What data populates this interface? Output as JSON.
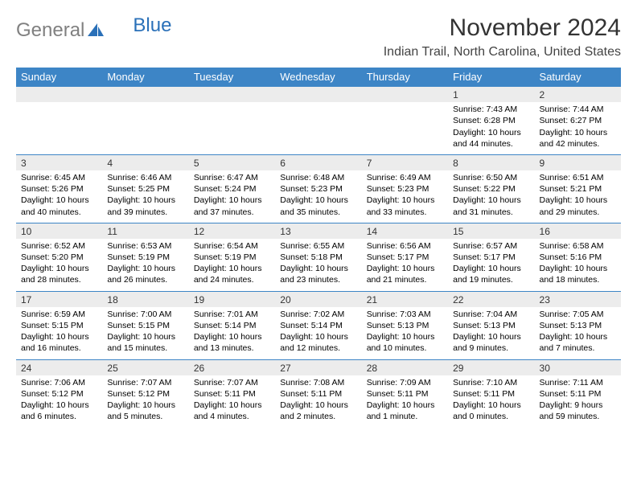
{
  "logo": {
    "text_gray": "General",
    "text_blue": "Blue",
    "gray": "#808080",
    "blue": "#2a70b8"
  },
  "title": "November 2024",
  "location": "Indian Trail, North Carolina, United States",
  "colors": {
    "header_bg": "#3d85c6",
    "header_fg": "#ffffff",
    "daynum_bg": "#ececec",
    "border": "#3d85c6"
  },
  "day_headers": [
    "Sunday",
    "Monday",
    "Tuesday",
    "Wednesday",
    "Thursday",
    "Friday",
    "Saturday"
  ],
  "weeks": [
    [
      null,
      null,
      null,
      null,
      null,
      {
        "n": "1",
        "sr": "Sunrise: 7:43 AM",
        "ss": "Sunset: 6:28 PM",
        "dl": "Daylight: 10 hours and 44 minutes."
      },
      {
        "n": "2",
        "sr": "Sunrise: 7:44 AM",
        "ss": "Sunset: 6:27 PM",
        "dl": "Daylight: 10 hours and 42 minutes."
      }
    ],
    [
      {
        "n": "3",
        "sr": "Sunrise: 6:45 AM",
        "ss": "Sunset: 5:26 PM",
        "dl": "Daylight: 10 hours and 40 minutes."
      },
      {
        "n": "4",
        "sr": "Sunrise: 6:46 AM",
        "ss": "Sunset: 5:25 PM",
        "dl": "Daylight: 10 hours and 39 minutes."
      },
      {
        "n": "5",
        "sr": "Sunrise: 6:47 AM",
        "ss": "Sunset: 5:24 PM",
        "dl": "Daylight: 10 hours and 37 minutes."
      },
      {
        "n": "6",
        "sr": "Sunrise: 6:48 AM",
        "ss": "Sunset: 5:23 PM",
        "dl": "Daylight: 10 hours and 35 minutes."
      },
      {
        "n": "7",
        "sr": "Sunrise: 6:49 AM",
        "ss": "Sunset: 5:23 PM",
        "dl": "Daylight: 10 hours and 33 minutes."
      },
      {
        "n": "8",
        "sr": "Sunrise: 6:50 AM",
        "ss": "Sunset: 5:22 PM",
        "dl": "Daylight: 10 hours and 31 minutes."
      },
      {
        "n": "9",
        "sr": "Sunrise: 6:51 AM",
        "ss": "Sunset: 5:21 PM",
        "dl": "Daylight: 10 hours and 29 minutes."
      }
    ],
    [
      {
        "n": "10",
        "sr": "Sunrise: 6:52 AM",
        "ss": "Sunset: 5:20 PM",
        "dl": "Daylight: 10 hours and 28 minutes."
      },
      {
        "n": "11",
        "sr": "Sunrise: 6:53 AM",
        "ss": "Sunset: 5:19 PM",
        "dl": "Daylight: 10 hours and 26 minutes."
      },
      {
        "n": "12",
        "sr": "Sunrise: 6:54 AM",
        "ss": "Sunset: 5:19 PM",
        "dl": "Daylight: 10 hours and 24 minutes."
      },
      {
        "n": "13",
        "sr": "Sunrise: 6:55 AM",
        "ss": "Sunset: 5:18 PM",
        "dl": "Daylight: 10 hours and 23 minutes."
      },
      {
        "n": "14",
        "sr": "Sunrise: 6:56 AM",
        "ss": "Sunset: 5:17 PM",
        "dl": "Daylight: 10 hours and 21 minutes."
      },
      {
        "n": "15",
        "sr": "Sunrise: 6:57 AM",
        "ss": "Sunset: 5:17 PM",
        "dl": "Daylight: 10 hours and 19 minutes."
      },
      {
        "n": "16",
        "sr": "Sunrise: 6:58 AM",
        "ss": "Sunset: 5:16 PM",
        "dl": "Daylight: 10 hours and 18 minutes."
      }
    ],
    [
      {
        "n": "17",
        "sr": "Sunrise: 6:59 AM",
        "ss": "Sunset: 5:15 PM",
        "dl": "Daylight: 10 hours and 16 minutes."
      },
      {
        "n": "18",
        "sr": "Sunrise: 7:00 AM",
        "ss": "Sunset: 5:15 PM",
        "dl": "Daylight: 10 hours and 15 minutes."
      },
      {
        "n": "19",
        "sr": "Sunrise: 7:01 AM",
        "ss": "Sunset: 5:14 PM",
        "dl": "Daylight: 10 hours and 13 minutes."
      },
      {
        "n": "20",
        "sr": "Sunrise: 7:02 AM",
        "ss": "Sunset: 5:14 PM",
        "dl": "Daylight: 10 hours and 12 minutes."
      },
      {
        "n": "21",
        "sr": "Sunrise: 7:03 AM",
        "ss": "Sunset: 5:13 PM",
        "dl": "Daylight: 10 hours and 10 minutes."
      },
      {
        "n": "22",
        "sr": "Sunrise: 7:04 AM",
        "ss": "Sunset: 5:13 PM",
        "dl": "Daylight: 10 hours and 9 minutes."
      },
      {
        "n": "23",
        "sr": "Sunrise: 7:05 AM",
        "ss": "Sunset: 5:13 PM",
        "dl": "Daylight: 10 hours and 7 minutes."
      }
    ],
    [
      {
        "n": "24",
        "sr": "Sunrise: 7:06 AM",
        "ss": "Sunset: 5:12 PM",
        "dl": "Daylight: 10 hours and 6 minutes."
      },
      {
        "n": "25",
        "sr": "Sunrise: 7:07 AM",
        "ss": "Sunset: 5:12 PM",
        "dl": "Daylight: 10 hours and 5 minutes."
      },
      {
        "n": "26",
        "sr": "Sunrise: 7:07 AM",
        "ss": "Sunset: 5:11 PM",
        "dl": "Daylight: 10 hours and 4 minutes."
      },
      {
        "n": "27",
        "sr": "Sunrise: 7:08 AM",
        "ss": "Sunset: 5:11 PM",
        "dl": "Daylight: 10 hours and 2 minutes."
      },
      {
        "n": "28",
        "sr": "Sunrise: 7:09 AM",
        "ss": "Sunset: 5:11 PM",
        "dl": "Daylight: 10 hours and 1 minute."
      },
      {
        "n": "29",
        "sr": "Sunrise: 7:10 AM",
        "ss": "Sunset: 5:11 PM",
        "dl": "Daylight: 10 hours and 0 minutes."
      },
      {
        "n": "30",
        "sr": "Sunrise: 7:11 AM",
        "ss": "Sunset: 5:11 PM",
        "dl": "Daylight: 9 hours and 59 minutes."
      }
    ]
  ]
}
